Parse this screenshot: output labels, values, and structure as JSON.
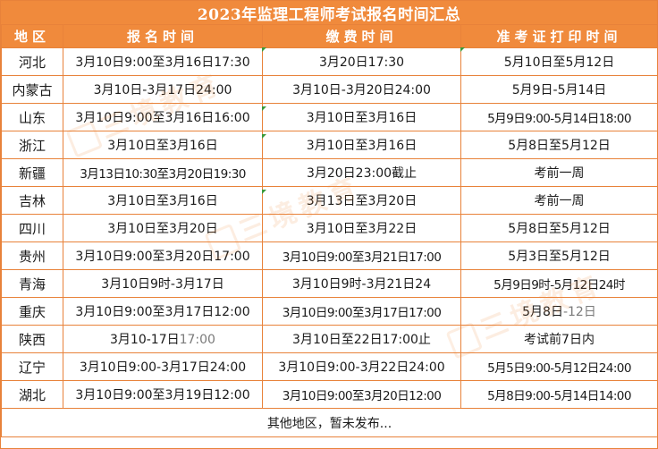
{
  "title": "2023年监理工程师考试报名时间汇总",
  "headers": {
    "region": "地区",
    "registration": "报名时间",
    "payment": "缴费时间",
    "admission_print": "准考证打印时间"
  },
  "rows": [
    {
      "region": "河北",
      "registration": "3月10日9:00至3月16日17:30",
      "payment": "3月20日17:30",
      "admission": "5月10日至5月12日"
    },
    {
      "region": "内蒙古",
      "registration": "3月10日-3月17日24:00",
      "payment": "3月10日-3月20日24:00",
      "admission": "5月9日-5月14日"
    },
    {
      "region": "山东",
      "registration": "3月10日9:00至3月16日16:00",
      "payment": "3月10日至3月16日",
      "admission": "5月9日9:00-5月14日18:00"
    },
    {
      "region": "浙江",
      "registration": "3月10日至3月16日",
      "payment": "3月10日至3月16日",
      "admission": "5月8日至5月12日"
    },
    {
      "region": "新疆",
      "registration": "3月13日10:30至3月20日19:30",
      "payment": "3月20日23:00截止",
      "admission": "考前一周"
    },
    {
      "region": "吉林",
      "registration": "3月10日至3月16日",
      "payment": "3月13日至3月20日",
      "admission": "考前一周"
    },
    {
      "region": "四川",
      "registration": "3月10日至3月20日",
      "payment": "3月10日至3月22日",
      "admission": "5月8日至5月12日"
    },
    {
      "region": "贵州",
      "registration": "3月10日9:00至3月20日17:00",
      "payment": "3月10日9:00至3月21日17:00",
      "admission": "5月3日至5月12日"
    },
    {
      "region": "青海",
      "registration": "3月10日9时-3月17日",
      "payment": "3月10日9时-3月21日24",
      "admission": "5月9日9时-5月12日24时"
    },
    {
      "region": "重庆",
      "registration": "3月10日9:00至3月17日12:00",
      "payment": "3月10日9:00至3月17日17:00",
      "admission_main": "5月8日",
      "admission_faded": "-12日"
    },
    {
      "region": "陕西",
      "registration_main": "3月10-17日",
      "registration_faded": "17:00",
      "payment": "3月10日至22日17:00止",
      "admission": "考试前7日内"
    },
    {
      "region": "辽宁",
      "registration": "3月10日9:00-3月17日24:00",
      "payment": "3月10日9:00-3月22日24:00",
      "admission": "5月5日9:00-5月12日24:00"
    },
    {
      "region": "湖北",
      "registration": "3月10日9:00至3月19日12:00",
      "payment": "3月10日9:00至3月20日12:00",
      "admission": "5月8日9:00-5月14日14:00"
    }
  ],
  "footer": "其他地区，暂未发布...",
  "watermark": "三境教育",
  "colors": {
    "header_bg": "#f08a3c",
    "border": "#e8823a",
    "text": "#1a1a1a",
    "marker": "#3a9a3a"
  }
}
